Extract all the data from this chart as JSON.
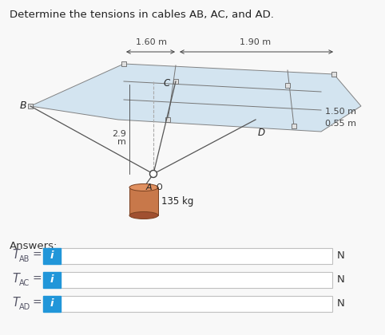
{
  "title": "Determine the tensions in cables AB, AC, and AD.",
  "title_fontsize": 9.5,
  "bg_color": "#f8f8f8",
  "diagram": {
    "plate_color": "#cfe2f0",
    "plate_edge_color": "#777777",
    "cable_color": "#555555",
    "dim_color": "#444444",
    "cyl_face": "#c8784a",
    "cyl_top": "#e09060",
    "cyl_bot": "#a05030",
    "cyl_edge": "#7a4020"
  },
  "labels": {
    "dim1": "1.60 m",
    "dim2": "1.90 m",
    "dim3": "1.50 m",
    "dim4": "0.55 m",
    "dim5_1": "2.9",
    "dim5_2": "m",
    "mass": "135 kg",
    "B": "B",
    "C": "C",
    "D": "D",
    "A": "A"
  },
  "answers_label": "Answers:",
  "answer_rows": [
    {
      "subscript": "AB"
    },
    {
      "subscript": "AC"
    },
    {
      "subscript": "AD"
    }
  ],
  "unit": "N",
  "box_color": "#2196d9",
  "box_text": "i",
  "box_text_color": "#ffffff",
  "label_color": "#555566"
}
